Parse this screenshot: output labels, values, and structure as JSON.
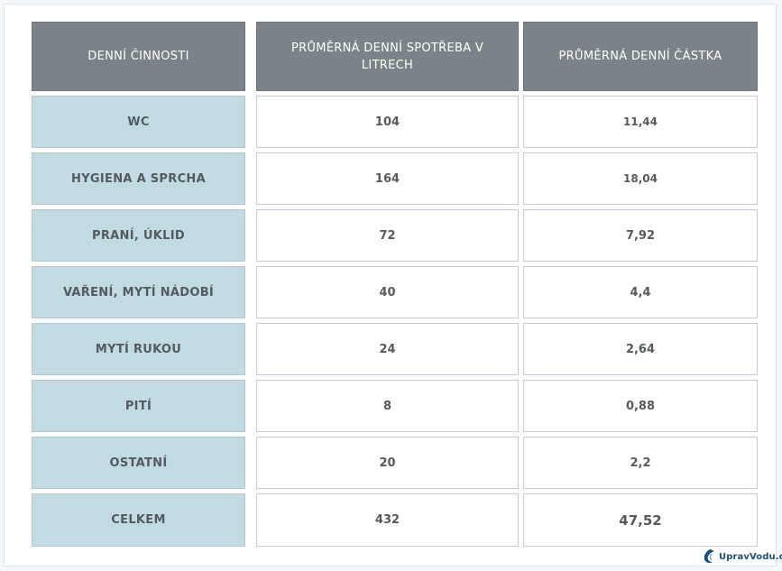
{
  "headers": [
    "DENNÍ ČINNOSTI",
    "PRŮMĚRNÁ DENNÍ SPOTŘEBA V LITRECH",
    "PRŮMĚRNÁ DENNÍ ČÁSTKA"
  ],
  "rows": [
    {
      "activity": "WC",
      "liters": "104",
      "amount": "11,44"
    },
    {
      "activity": "HYGIENA A SPRCHA",
      "liters": "164",
      "amount": "18,04"
    },
    {
      "activity": "PRANÍ, ÚKLID",
      "liters": "72",
      "amount": "7,92"
    },
    {
      "activity": "VAŘENÍ, MYTÍ NÁDOBÍ",
      "liters": "40",
      "amount": "4,4"
    },
    {
      "activity": "MYTÍ RUKOU",
      "liters": "24",
      "amount": "2,64"
    },
    {
      "activity": "PITÍ",
      "liters": "8",
      "amount": "0,88"
    },
    {
      "activity": "OSTATNÍ",
      "liters": "20",
      "amount": "2,2"
    },
    {
      "activity": "CELKEM",
      "liters": "432",
      "amount": "47,52"
    }
  ],
  "logo": {
    "text": "UpravVodu.cz",
    "icon": "water-drop-icon"
  },
  "colors": {
    "header_bg": "#7a8488",
    "label_bg": "#c1dbe3",
    "text": "#555a5e",
    "logo": "#1c4f7a"
  }
}
